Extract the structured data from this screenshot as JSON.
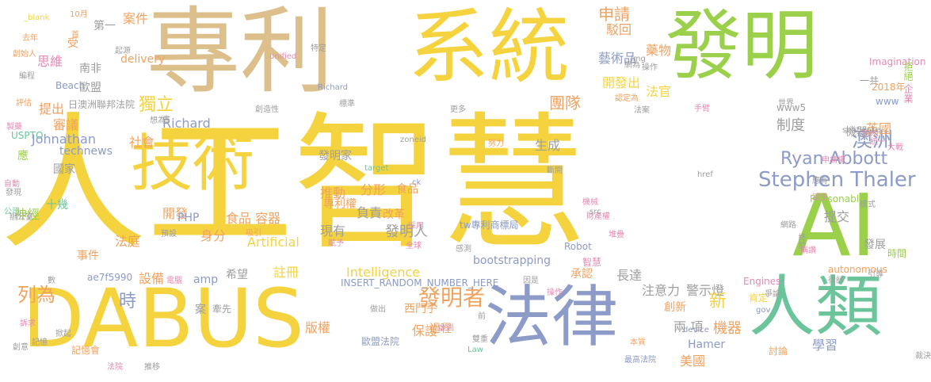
{
  "word_cloud": {
    "palette": {
      "yellow": "#f5d33f",
      "tan": "#dcbf8a",
      "green": "#9ad04a",
      "slate": "#8c9bc7",
      "teal": "#6cc59a",
      "pink": "#e58ab4",
      "orange": "#f0a260",
      "gray": "#9e9e9e"
    },
    "words": [
      {
        "text": "人工智慧",
        "color": "yellow"
      },
      {
        "text": "專利",
        "color": "tan"
      },
      {
        "text": "系統",
        "color": "yellow"
      },
      {
        "text": "發明",
        "color": "green"
      },
      {
        "text": "DABUS",
        "color": "yellow"
      },
      {
        "text": "法律",
        "color": "slate"
      },
      {
        "text": "人類",
        "color": "teal"
      },
      {
        "text": "AI",
        "color": "green"
      },
      {
        "text": "技術",
        "color": "yellow"
      },
      {
        "text": "Stephen Thaler",
        "color": "slate"
      },
      {
        "text": "Ryan Abbott",
        "color": "slate"
      },
      {
        "text": "澳洲",
        "color": "slate"
      },
      {
        "text": "申請",
        "color": "orange"
      },
      {
        "text": "發明者",
        "color": "orange"
      },
      {
        "text": "發明人",
        "color": "gray"
      },
      {
        "text": "團隊",
        "color": "orange"
      },
      {
        "text": "獨立",
        "color": "yellow"
      },
      {
        "text": "制度",
        "color": "gray"
      },
      {
        "text": "藝術品",
        "color": "slate"
      },
      {
        "text": "藥物",
        "color": "orange"
      },
      {
        "text": "開發出",
        "color": "yellow"
      },
      {
        "text": "法官",
        "color": "yellow"
      },
      {
        "text": "駁回",
        "color": "orange"
      },
      {
        "text": "案件",
        "color": "orange"
      },
      {
        "text": "南非",
        "color": "gray"
      },
      {
        "text": "歐盟",
        "color": "gray"
      },
      {
        "text": "Beach",
        "color": "slate"
      },
      {
        "text": "思維",
        "color": "pink"
      },
      {
        "text": "提出",
        "color": "orange"
      },
      {
        "text": "審議",
        "color": "orange"
      },
      {
        "text": "社會",
        "color": "orange"
      },
      {
        "text": "Johnathan",
        "color": "slate"
      },
      {
        "text": "technews",
        "color": "slate"
      },
      {
        "text": "國家",
        "color": "gray"
      },
      {
        "text": "Richard",
        "color": "slate"
      },
      {
        "text": "推動",
        "color": "orange"
      },
      {
        "text": "發明家",
        "color": "gray"
      },
      {
        "text": "生成",
        "color": "gray"
      },
      {
        "text": "分形",
        "color": "orange"
      },
      {
        "text": "食品",
        "color": "orange"
      },
      {
        "text": "專利權",
        "color": "orange"
      },
      {
        "text": "開發",
        "color": "orange"
      },
      {
        "text": "食品 容器",
        "color": "orange"
      },
      {
        "text": "身分",
        "color": "orange"
      },
      {
        "text": "法庭",
        "color": "orange"
      },
      {
        "text": "Artificial",
        "color": "yellow"
      },
      {
        "text": "註冊",
        "color": "yellow"
      },
      {
        "text": "Intelligence",
        "color": "yellow"
      },
      {
        "text": "希望",
        "color": "gray"
      },
      {
        "text": "事件",
        "color": "orange"
      },
      {
        "text": "設備",
        "color": "orange"
      },
      {
        "text": "amp",
        "color": "slate"
      },
      {
        "text": "ae7f5990",
        "color": "slate"
      },
      {
        "text": "時",
        "color": "slate"
      },
      {
        "text": "列為",
        "color": "orange"
      },
      {
        "text": "版權",
        "color": "orange"
      },
      {
        "text": "保護",
        "color": "orange"
      },
      {
        "text": "過程",
        "color": "orange"
      },
      {
        "text": "西門子",
        "color": "orange"
      },
      {
        "text": "注意力",
        "color": "gray"
      },
      {
        "text": "警示燈",
        "color": "gray"
      },
      {
        "text": "創新",
        "color": "orange"
      },
      {
        "text": "新",
        "color": "yellow"
      },
      {
        "text": "兩 項",
        "color": "gray"
      },
      {
        "text": "長達",
        "color": "gray"
      },
      {
        "text": "美國",
        "color": "orange"
      },
      {
        "text": "Hamer",
        "color": "slate"
      },
      {
        "text": "機器",
        "color": "orange"
      },
      {
        "text": "肯定",
        "color": "yellow"
      },
      {
        "text": "學習",
        "color": "slate"
      },
      {
        "text": "討論",
        "color": "orange"
      },
      {
        "text": "承認",
        "color": "orange"
      },
      {
        "text": "提交",
        "color": "gray"
      },
      {
        "text": "發展",
        "color": "gray"
      },
      {
        "text": "英國",
        "color": "orange"
      },
      {
        "text": "機器人",
        "color": "gray"
      },
      {
        "text": "www",
        "color": "slate"
      },
      {
        "text": "www5",
        "color": "gray"
      },
      {
        "text": "2018年",
        "color": "orange"
      },
      {
        "text": "Imagination",
        "color": "pink"
      },
      {
        "text": "一共",
        "color": "gray"
      },
      {
        "text": "企業",
        "color": "pink"
      },
      {
        "text": "拒絕",
        "color": "green"
      },
      {
        "text": "神經",
        "color": "green"
      },
      {
        "text": "十幾",
        "color": "teal"
      },
      {
        "text": "應",
        "color": "green"
      },
      {
        "text": "PHP",
        "color": "slate"
      },
      {
        "text": "現有",
        "color": "gray"
      },
      {
        "text": "負責",
        "color": "gray"
      },
      {
        "text": "改革",
        "color": "orange"
      },
      {
        "text": "第一",
        "color": "gray"
      },
      {
        "text": "受",
        "color": "orange"
      },
      {
        "text": "delivery",
        "color": "orange"
      },
      {
        "text": "起源",
        "color": "gray"
      },
      {
        "text": "tw專利商標局",
        "color": "slate"
      },
      {
        "text": "bootstrapping",
        "color": "slate"
      },
      {
        "text": "INSERT_RANDOM_NUMBER_HERE",
        "color": "slate"
      },
      {
        "text": "Robot",
        "color": "slate"
      },
      {
        "text": "智慧",
        "color": "pink"
      },
      {
        "text": "Reasonable",
        "color": "green"
      },
      {
        "text": "autonomous",
        "color": "orange"
      },
      {
        "text": "Engines",
        "color": "pink"
      },
      {
        "text": "sentience",
        "color": "gray"
      },
      {
        "text": "zoneid",
        "color": "gray"
      },
      {
        "text": "target",
        "color": "teal"
      },
      {
        "text": "unified",
        "color": "pink"
      },
      {
        "text": "USPTO",
        "color": "teal"
      },
      {
        "text": "日澳洲聯邦法院",
        "color": "gray"
      },
      {
        "text": "歐盟法院",
        "color": "slate"
      },
      {
        "text": "記憶會",
        "color": "orange"
      },
      {
        "text": "最高法院",
        "color": "slate"
      },
      {
        "text": "案",
        "color": "gray"
      },
      {
        "text": "牽先",
        "color": "gray"
      },
      {
        "text": "全球",
        "color": "pink"
      },
      {
        "text": "做出",
        "color": "gray"
      },
      {
        "text": "財產權",
        "color": "pink"
      },
      {
        "text": "網路",
        "color": "gray"
      },
      {
        "text": "時間",
        "color": "green"
      },
      {
        "text": "律師",
        "color": "gray"
      },
      {
        "text": "裁決",
        "color": "gray"
      },
      {
        "text": "誕生",
        "color": "pink"
      },
      {
        "text": "模式",
        "color": "gray"
      },
      {
        "text": "申請權",
        "color": "pink"
      },
      {
        "text": "統一",
        "color": "pink"
      },
      {
        "text": "大戰",
        "color": "pink"
      },
      {
        "text": "浩大",
        "color": "pink"
      },
      {
        "text": "世界",
        "color": "gray"
      },
      {
        "text": "法案",
        "color": "gray"
      },
      {
        "text": "手臂",
        "color": "pink"
      },
      {
        "text": "認定為",
        "color": "orange"
      },
      {
        "text": "操作",
        "color": "gray"
      },
      {
        "text": "網為",
        "color": "gray"
      },
      {
        "text": "img",
        "color": "gray"
      },
      {
        "text": "_blank",
        "color": "yellow"
      },
      {
        "text": "10月",
        "color": "orange"
      },
      {
        "text": "特定",
        "color": "gray"
      },
      {
        "text": "首",
        "color": "orange"
      },
      {
        "text": "去年",
        "color": "orange"
      },
      {
        "text": "創始人",
        "color": "orange"
      },
      {
        "text": "編程",
        "color": "gray"
      },
      {
        "text": "評估",
        "color": "orange"
      },
      {
        "text": "製藥",
        "color": "pink"
      },
      {
        "text": "自動",
        "color": "pink"
      },
      {
        "text": "發現",
        "color": "gray"
      },
      {
        "text": "公司",
        "color": "teal"
      },
      {
        "text": "辦公室",
        "color": "gray"
      },
      {
        "text": "數",
        "color": "gray"
      },
      {
        "text": "訴求",
        "color": "pink"
      },
      {
        "text": "創意",
        "color": "gray"
      },
      {
        "text": "記憶",
        "color": "gray"
      },
      {
        "text": "法院",
        "color": "pink"
      },
      {
        "text": "推移",
        "color": "gray"
      },
      {
        "text": "掀起",
        "color": "gray"
      },
      {
        "text": "雙重",
        "color": "gray"
      },
      {
        "text": "Law",
        "color": "teal"
      },
      {
        "text": "談到",
        "color": "pink"
      },
      {
        "text": "操作",
        "color": "pink"
      },
      {
        "text": "因是",
        "color": "gray"
      },
      {
        "text": "感測",
        "color": "gray"
      },
      {
        "text": "賦予",
        "color": "pink"
      },
      {
        "text": "吸引",
        "color": "orange"
      },
      {
        "text": "電腦",
        "color": "pink"
      },
      {
        "text": "預設",
        "color": "gray"
      },
      {
        "text": "書",
        "color": "gray"
      },
      {
        "text": "Richard",
        "color": "slate"
      },
      {
        "text": "標準",
        "color": "gray"
      },
      {
        "text": "更多",
        "color": "gray"
      },
      {
        "text": "創造性",
        "color": "gray"
      },
      {
        "text": "想為",
        "color": "gray"
      },
      {
        "text": "努力",
        "color": "orange"
      },
      {
        "text": "斷開",
        "color": "gray"
      },
      {
        "text": "機械",
        "color": "pink"
      },
      {
        "text": "href",
        "color": "gray"
      },
      {
        "text": "ck",
        "color": "slate"
      },
      {
        "text": "src",
        "color": "gray"
      },
      {
        "text": "堆疊",
        "color": "pink"
      },
      {
        "text": "採用",
        "color": "pink"
      },
      {
        "text": "應有",
        "color": "gray"
      },
      {
        "text": "gov",
        "color": "slate"
      },
      {
        "text": "本質",
        "color": "orange"
      },
      {
        "text": "引導",
        "color": "gray"
      },
      {
        "text": "稱讚",
        "color": "pink"
      },
      {
        "text": "終於",
        "color": "gray"
      },
      {
        "text": "device",
        "color": "slate"
      },
      {
        "text": "爭論",
        "color": "gray"
      },
      {
        "text": "前",
        "color": "gray"
      },
      {
        "text": "便",
        "color": "orange"
      },
      {
        "text": "兩",
        "color": "gray"
      },
      {
        "text": "月",
        "color": "orange"
      },
      {
        "text": "次",
        "color": "orange"
      },
      {
        "text": "全",
        "color": "orange"
      },
      {
        "text": "群",
        "color": "gray"
      }
    ]
  }
}
